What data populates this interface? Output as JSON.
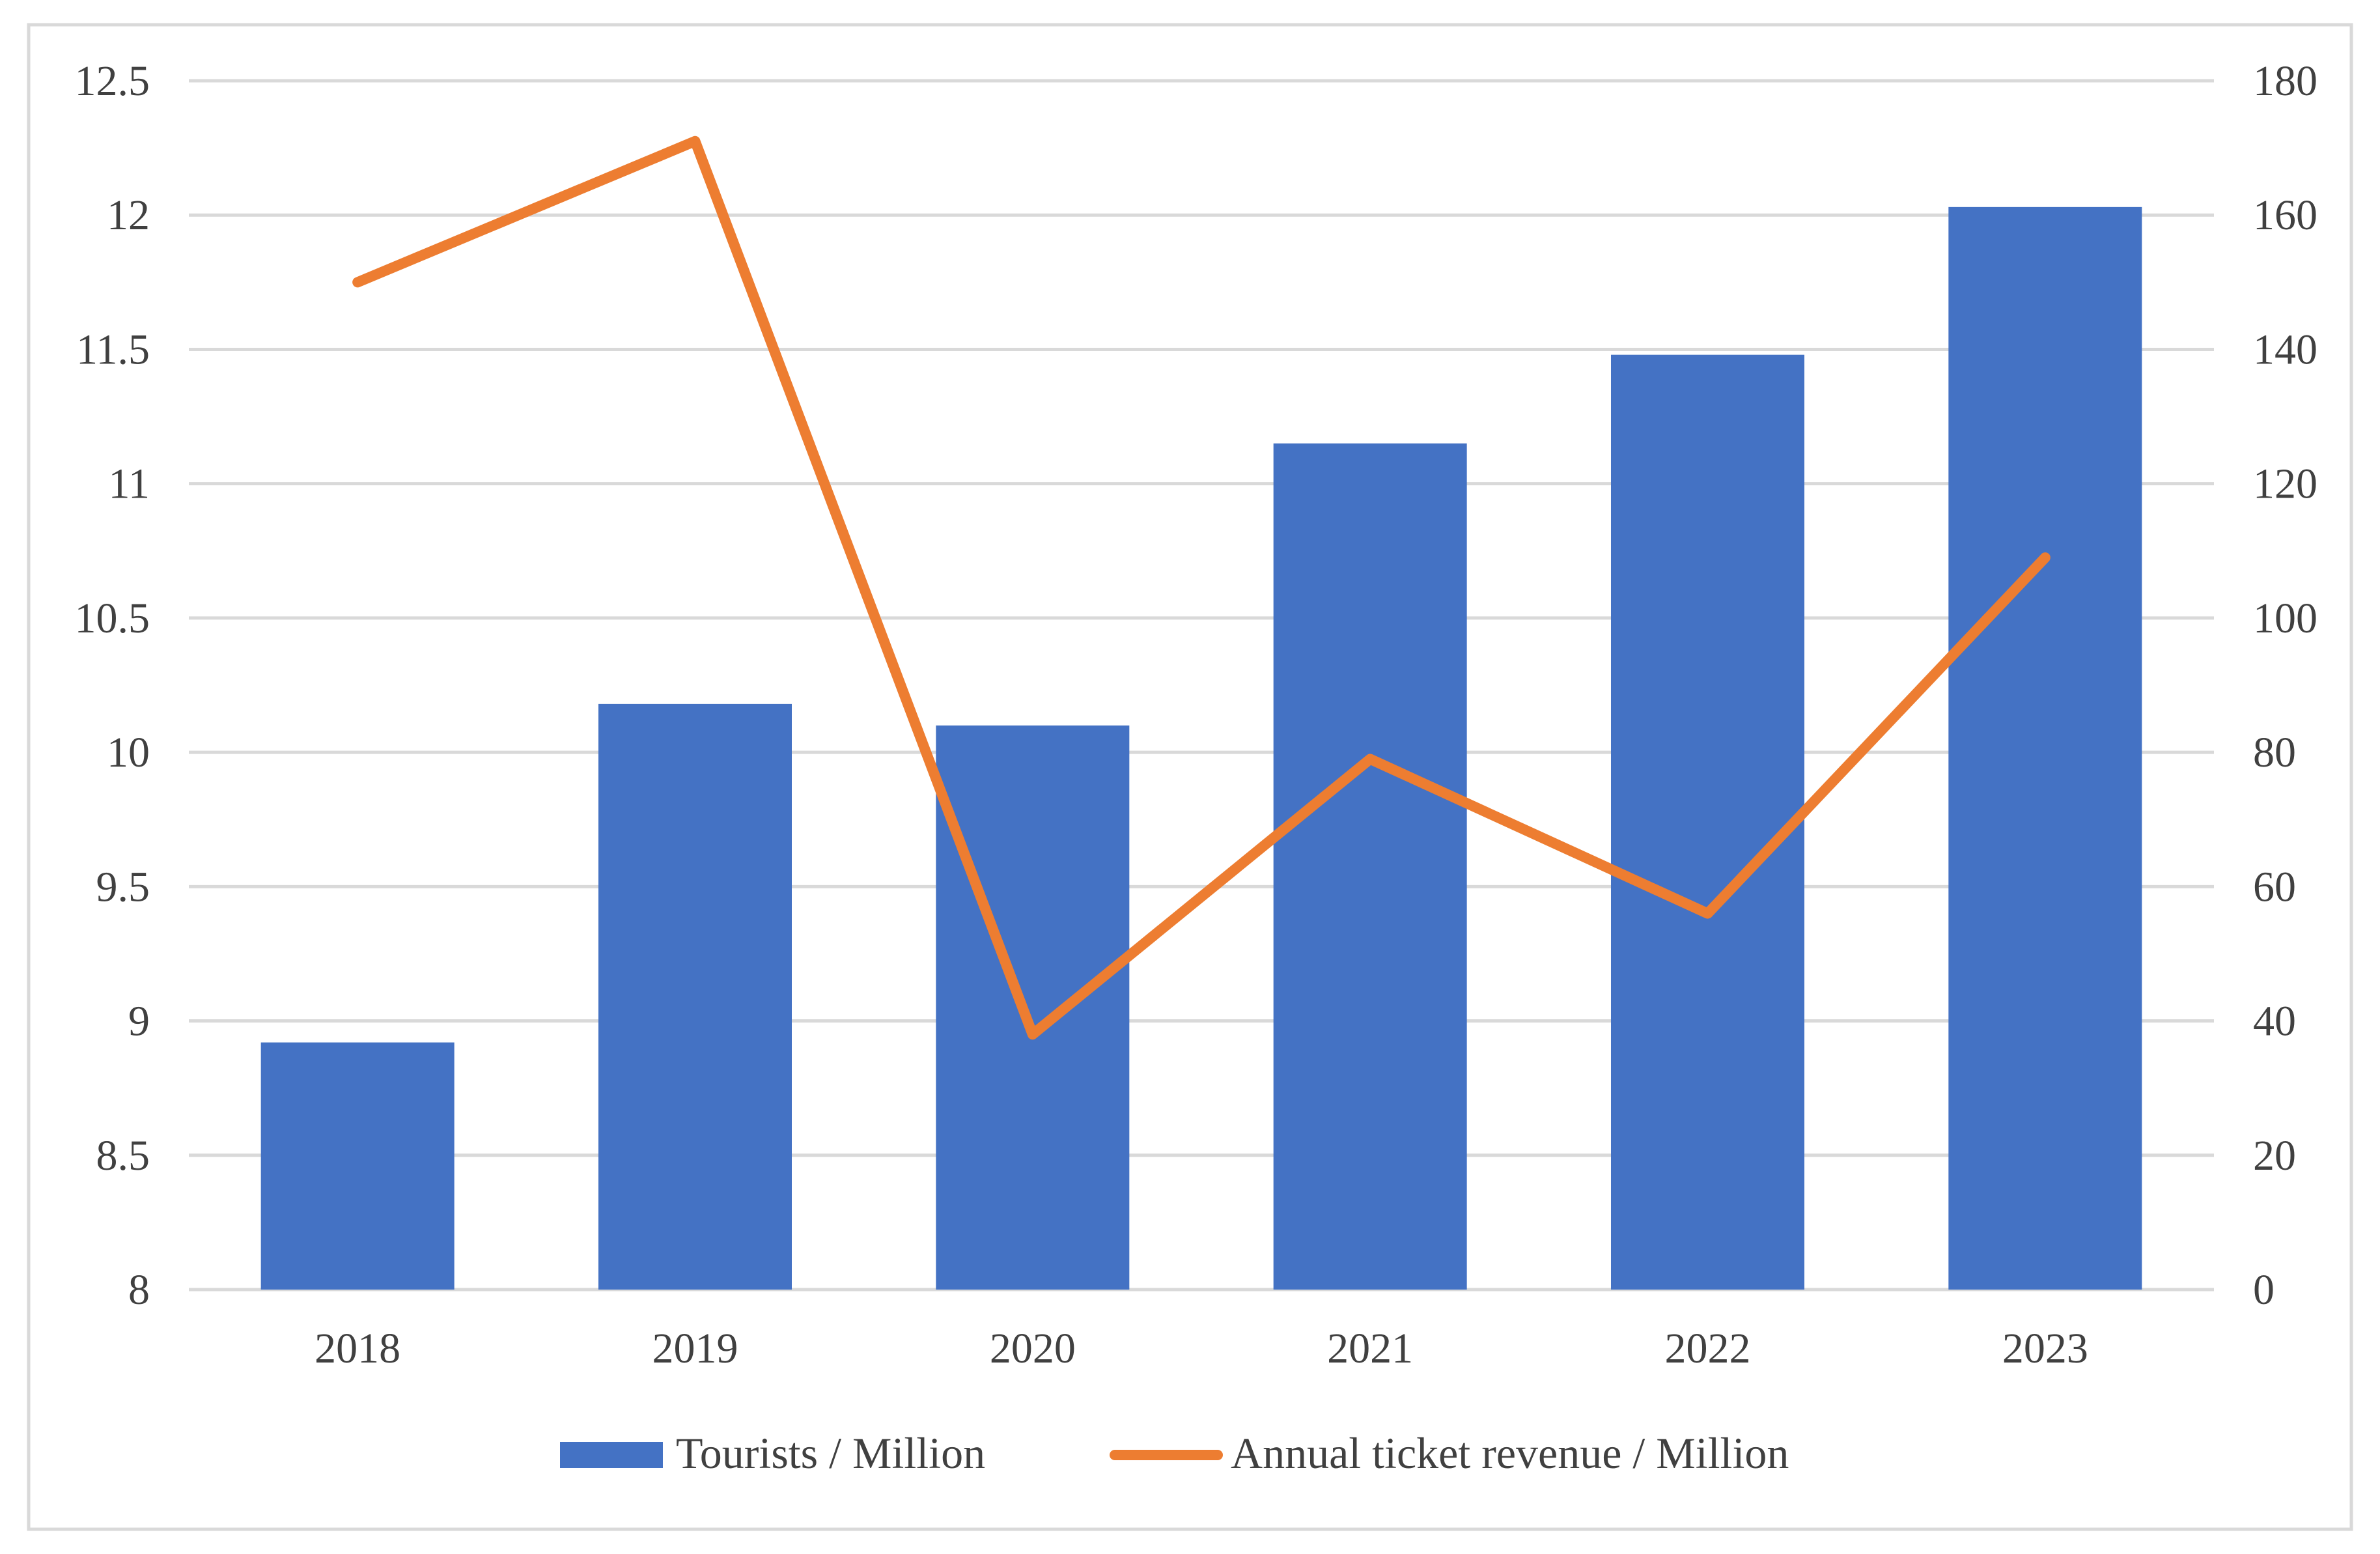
{
  "chart_data": {
    "type": "bar",
    "categories": [
      "2018",
      "2019",
      "2020",
      "2021",
      "2022",
      "2023"
    ],
    "series": [
      {
        "name": "Tourists / Million",
        "type": "bar",
        "axis": "left",
        "color": "#4472C4",
        "values": [
          8.92,
          10.18,
          10.1,
          11.15,
          11.48,
          12.03
        ]
      },
      {
        "name": "Annual ticket revenue / Million",
        "type": "line",
        "axis": "right",
        "color": "#ED7D31",
        "values": [
          150,
          171,
          38,
          79,
          56,
          109
        ]
      }
    ],
    "y_left": {
      "min": 8,
      "max": 12.5,
      "ticks": [
        "8",
        "8.5",
        "9",
        "9.5",
        "10",
        "10.5",
        "11",
        "11.5",
        "12",
        "12.5"
      ]
    },
    "y_right": {
      "min": 0,
      "max": 180,
      "ticks": [
        "0",
        "20",
        "40",
        "60",
        "80",
        "100",
        "120",
        "140",
        "160",
        "180"
      ]
    },
    "grid": true,
    "legend_position": "bottom"
  }
}
